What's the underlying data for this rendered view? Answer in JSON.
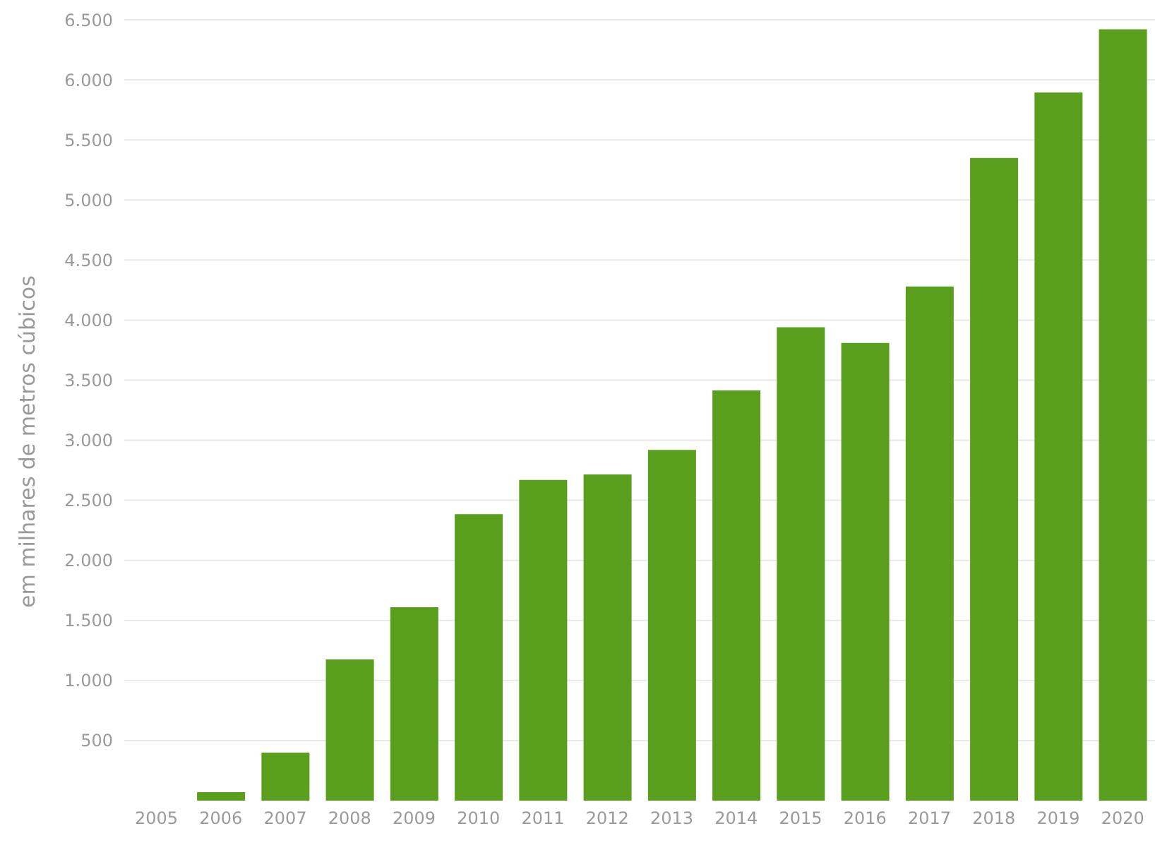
{
  "chart_data": {
    "type": "bar",
    "ylabel": "em milhares de metros cúbicos",
    "categories": [
      "2005",
      "2006",
      "2007",
      "2008",
      "2009",
      "2010",
      "2011",
      "2012",
      "2013",
      "2014",
      "2015",
      "2016",
      "2017",
      "2018",
      "2019",
      "2020"
    ],
    "values": [
      0,
      70,
      400,
      1175,
      1610,
      2385,
      2670,
      2715,
      2920,
      3415,
      3940,
      3810,
      4280,
      5350,
      5895,
      6420
    ],
    "color": "#5a9e1e",
    "ylim": [
      0,
      6500
    ],
    "yticks": [
      {
        "value": 500,
        "label": "500"
      },
      {
        "value": 1000,
        "label": "1.000"
      },
      {
        "value": 1500,
        "label": "1.500"
      },
      {
        "value": 2000,
        "label": "2.000"
      },
      {
        "value": 2500,
        "label": "2.500"
      },
      {
        "value": 3000,
        "label": "3.000"
      },
      {
        "value": 3500,
        "label": "3.500"
      },
      {
        "value": 4000,
        "label": "4.000"
      },
      {
        "value": 4500,
        "label": "4.500"
      },
      {
        "value": 5000,
        "label": "5.000"
      },
      {
        "value": 5500,
        "label": "5.500"
      },
      {
        "value": 6000,
        "label": "6.000"
      },
      {
        "value": 6500,
        "label": "6.500"
      }
    ],
    "grid": "y"
  }
}
